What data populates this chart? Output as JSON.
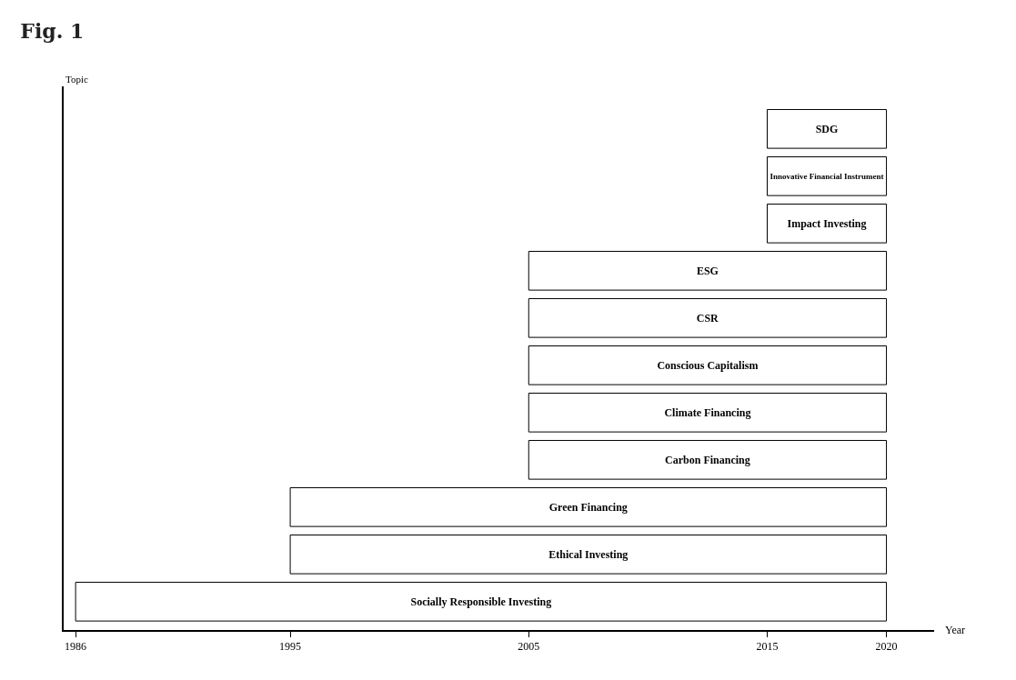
{
  "chart_data": {
    "type": "bar",
    "orientation": "horizontal",
    "title": "Fig. 1",
    "xlabel": "Year",
    "ylabel": "Topic",
    "categories": [
      "SDG",
      "Innovative Financial Instrument",
      "Impact Investing",
      "ESG",
      "CSR",
      "Conscious Capitalism",
      "Climate Financing",
      "Carbon Financing",
      "Green Financing",
      "Ethical Investing",
      "Socially Responsible Investing"
    ],
    "base": [
      2015,
      2015,
      2015,
      2005,
      2005,
      2005,
      2005,
      2005,
      1995,
      1995,
      1986
    ],
    "values": [
      5,
      5,
      5,
      15,
      15,
      15,
      15,
      15,
      25,
      25,
      34
    ],
    "color": "#ffffff",
    "xlim": [
      1985.5,
      2022
    ],
    "xticks": [
      1986,
      1995,
      2005,
      2015,
      2020
    ],
    "tick_labels": "x"
  }
}
